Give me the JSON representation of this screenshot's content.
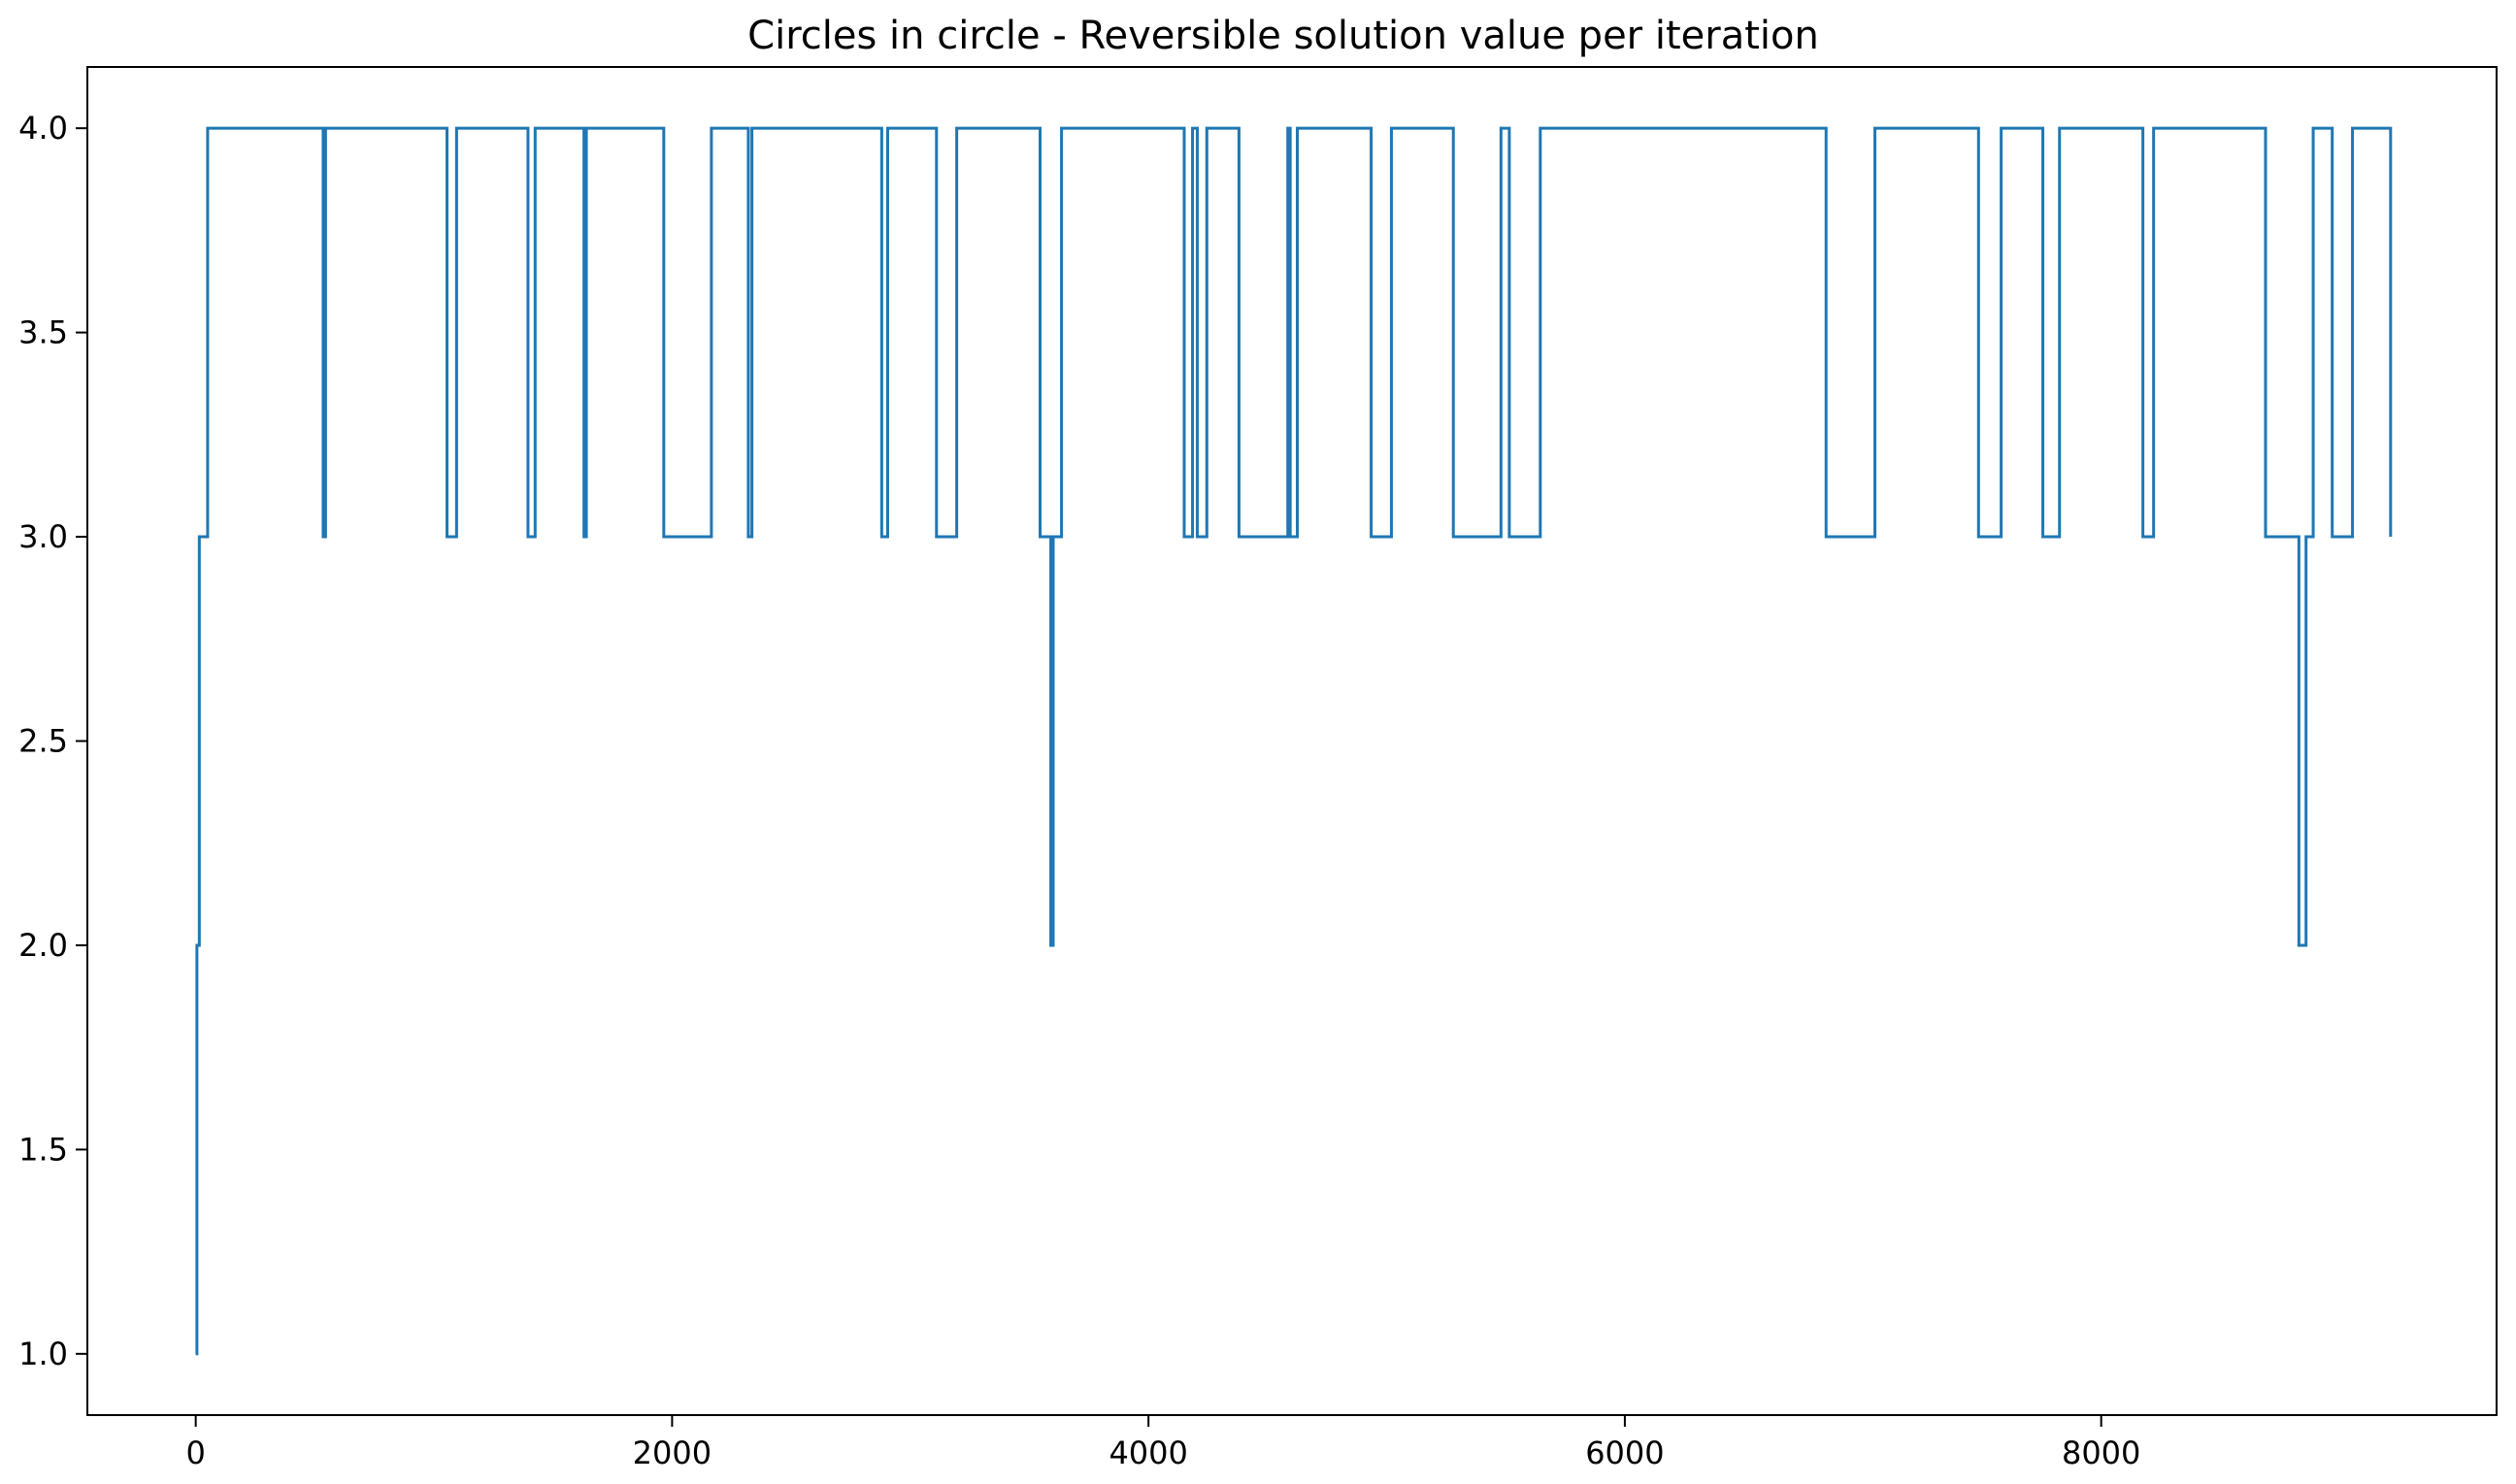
{
  "chart_data": {
    "type": "line",
    "title": "Circles in circle - Reversible solution value per iteration",
    "xlabel": "",
    "ylabel": "",
    "xlim": [
      -455,
      9660
    ],
    "ylim": [
      0.85,
      4.15
    ],
    "x_ticks": [
      0,
      2000,
      4000,
      6000,
      8000
    ],
    "x_tick_labels": [
      "0",
      "2000",
      "4000",
      "6000",
      "8000"
    ],
    "y_ticks": [
      1.0,
      1.5,
      2.0,
      2.5,
      3.0,
      3.5,
      4.0
    ],
    "y_tick_labels": [
      "1.0",
      "1.5",
      "2.0",
      "2.5",
      "3.0",
      "3.5",
      "4.0"
    ],
    "grid": false,
    "legend": "none",
    "series": [
      {
        "color": "#1f77b4",
        "step": "post",
        "points": [
          [
            0,
            1
          ],
          [
            5,
            2
          ],
          [
            15,
            3
          ],
          [
            50,
            4
          ],
          [
            535,
            3
          ],
          [
            545,
            4
          ],
          [
            1055,
            3
          ],
          [
            1095,
            4
          ],
          [
            1395,
            3
          ],
          [
            1425,
            4
          ],
          [
            1630,
            3
          ],
          [
            1640,
            4
          ],
          [
            1965,
            3
          ],
          [
            2165,
            4
          ],
          [
            2320,
            3
          ],
          [
            2335,
            4
          ],
          [
            2880,
            3
          ],
          [
            2905,
            4
          ],
          [
            3110,
            3
          ],
          [
            3195,
            4
          ],
          [
            3545,
            3
          ],
          [
            3590,
            2
          ],
          [
            3600,
            3
          ],
          [
            3635,
            4
          ],
          [
            4150,
            3
          ],
          [
            4185,
            4
          ],
          [
            4205,
            3
          ],
          [
            4245,
            4
          ],
          [
            4380,
            3
          ],
          [
            4585,
            4
          ],
          [
            4595,
            3
          ],
          [
            4625,
            4
          ],
          [
            4935,
            3
          ],
          [
            5020,
            4
          ],
          [
            5280,
            3
          ],
          [
            5480,
            4
          ],
          [
            5515,
            3
          ],
          [
            5645,
            4
          ],
          [
            6845,
            3
          ],
          [
            7050,
            4
          ],
          [
            7485,
            3
          ],
          [
            7580,
            4
          ],
          [
            7755,
            3
          ],
          [
            7825,
            4
          ],
          [
            8175,
            3
          ],
          [
            8220,
            4
          ],
          [
            8690,
            3
          ],
          [
            8830,
            2
          ],
          [
            8860,
            3
          ],
          [
            8890,
            4
          ],
          [
            8970,
            3
          ],
          [
            9055,
            4
          ],
          [
            9215,
            3
          ]
        ]
      }
    ]
  }
}
